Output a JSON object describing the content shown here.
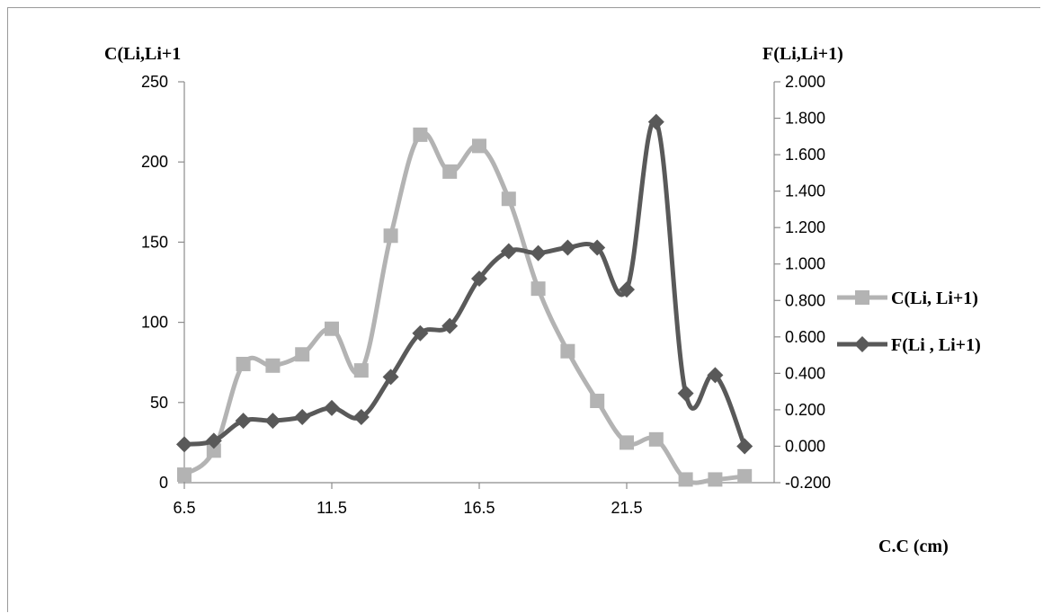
{
  "chart_data": {
    "type": "line",
    "title": "",
    "left_axis_label": "C(Li,Li+1",
    "right_axis_label": "F(Li,Li+1)",
    "xlabel": "C.C (cm)",
    "x_ticks": [
      "6.5",
      "11.5",
      "16.5",
      "21.5"
    ],
    "x_tick_values": [
      6.5,
      11.5,
      16.5,
      21.5
    ],
    "xlim": [
      6.5,
      26.5
    ],
    "y_left_ticks": [
      "0",
      "50",
      "100",
      "150",
      "200",
      "250"
    ],
    "y_left_lim": [
      0,
      250
    ],
    "y_right_ticks": [
      "-0.200",
      "0.000",
      "0.200",
      "0.400",
      "0.600",
      "0.800",
      "1.000",
      "1.200",
      "1.400",
      "1.600",
      "1.800",
      "2.000"
    ],
    "y_right_lim": [
      -0.2,
      2.0
    ],
    "grid": false,
    "legend_position": "right",
    "series": [
      {
        "name": "C(Li, Li+1)",
        "axis": "left",
        "color": "#b3b3b3",
        "marker": "square",
        "x": [
          6.5,
          7.5,
          8.5,
          9.5,
          10.5,
          11.5,
          12.5,
          13.5,
          14.5,
          15.5,
          16.5,
          17.5,
          18.5,
          19.5,
          20.5,
          21.5,
          22.5,
          23.5,
          24.5,
          25.5
        ],
        "values": [
          5,
          20,
          74,
          73,
          80,
          96,
          70,
          154,
          217,
          194,
          210,
          177,
          121,
          82,
          51,
          25,
          27,
          2,
          2,
          4
        ]
      },
      {
        "name": "F(Li , Li+1)",
        "axis": "right",
        "color": "#595959",
        "marker": "diamond",
        "x": [
          6.5,
          7.5,
          8.5,
          9.5,
          10.5,
          11.5,
          12.5,
          13.5,
          14.5,
          15.5,
          16.5,
          17.5,
          18.5,
          19.5,
          20.5,
          21.5,
          22.5,
          23.5,
          24.5,
          25.5
        ],
        "values": [
          0.01,
          0.03,
          0.14,
          0.14,
          0.16,
          0.21,
          0.16,
          0.38,
          0.62,
          0.66,
          0.92,
          1.07,
          1.06,
          1.09,
          1.09,
          0.86,
          1.78,
          0.29,
          0.39,
          0.0
        ]
      }
    ]
  }
}
